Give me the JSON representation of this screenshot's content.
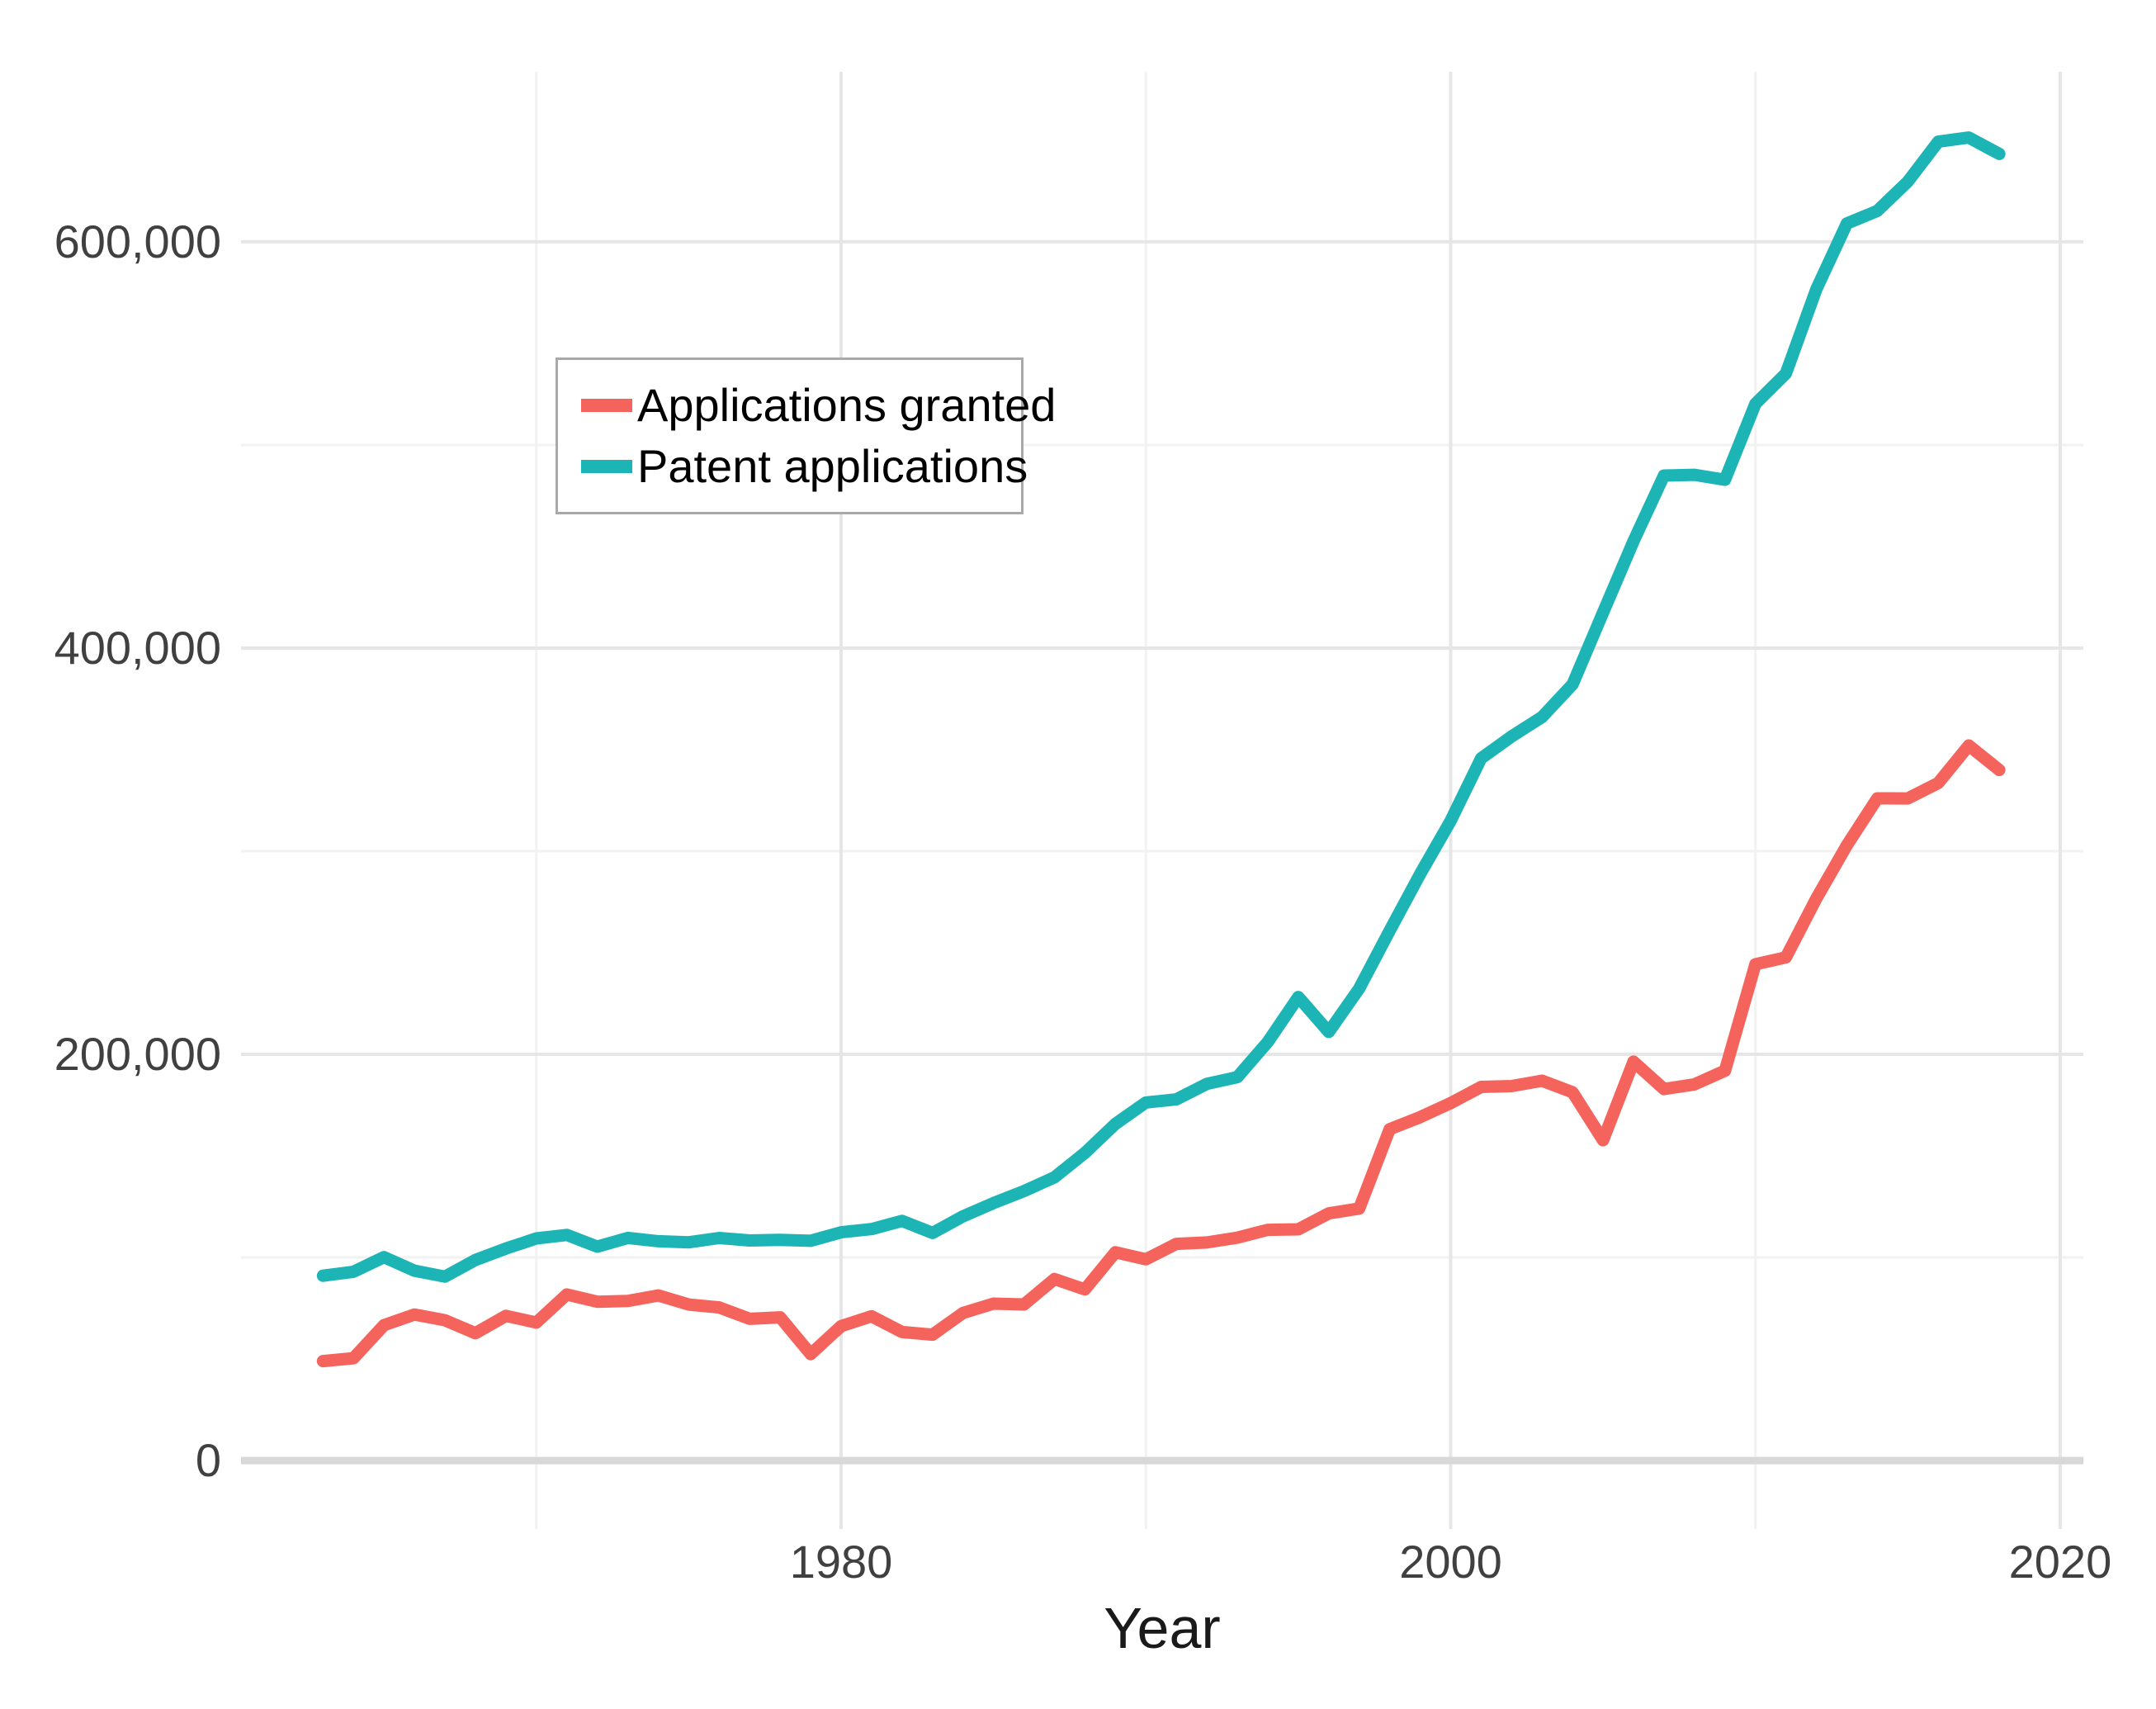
{
  "chart_data": {
    "type": "line",
    "xlabel": "Year",
    "x": [
      1963,
      1964,
      1965,
      1966,
      1967,
      1968,
      1969,
      1970,
      1971,
      1972,
      1973,
      1974,
      1975,
      1976,
      1977,
      1978,
      1979,
      1980,
      1981,
      1982,
      1983,
      1984,
      1985,
      1986,
      1987,
      1988,
      1989,
      1990,
      1991,
      1992,
      1993,
      1994,
      1995,
      1996,
      1997,
      1998,
      1999,
      2000,
      2001,
      2002,
      2003,
      2004,
      2005,
      2006,
      2007,
      2008,
      2009,
      2010,
      2011,
      2012,
      2013,
      2014,
      2015,
      2016,
      2017,
      2018
    ],
    "series": [
      {
        "name": "Applications granted",
        "color": "#F4645D",
        "values": [
          48971,
          50389,
          66647,
          71886,
          69098,
          62714,
          71230,
          67964,
          81790,
          78185,
          78622,
          81278,
          76810,
          75388,
          69781,
          70514,
          52413,
          66170,
          71064,
          63276,
          61982,
          72650,
          77245,
          76862,
          89385,
          84272,
          102533,
          99077,
          106696,
          107394,
          109746,
          113587,
          113834,
          121696,
          124069,
          163142,
          169085,
          175979,
          183970,
          184375,
          187012,
          181299,
          157718,
          196405,
          182899,
          185224,
          191927,
          244341,
          247713,
          276788,
          302948,
          326032,
          325979,
          333583,
          352049,
          339992
        ]
      },
      {
        "name": "Patent applications",
        "color": "#1DB4B5",
        "values": [
          90982,
          92971,
          100150,
          93482,
          90544,
          98737,
          104357,
          109359,
          111095,
          105300,
          109622,
          108011,
          107456,
          109580,
          108377,
          108648,
          108209,
          112379,
          113966,
          117987,
          112040,
          120276,
          126788,
          132665,
          139455,
          151491,
          165748,
          176264,
          177830,
          185446,
          188739,
          206090,
          228238,
          211013,
          232424,
          260889,
          288811,
          315015,
          345732,
          356493,
          366043,
          382139,
          417508,
          452633,
          484955,
          485312,
          482871,
          520277,
          535188,
          576763,
          609052,
          615243,
          629647,
          649319,
          651355,
          643303
        ]
      }
    ],
    "x_domain": [
      1960.31,
      2020.76
    ],
    "y_domain": [
      -33700,
      683700
    ],
    "x_ticks": [
      {
        "value": 1980,
        "label": "1980"
      },
      {
        "value": 2000,
        "label": "2000"
      },
      {
        "value": 2020,
        "label": "2020"
      }
    ],
    "x_minor_ticks": [
      1970,
      1990,
      2010
    ],
    "y_ticks": [
      {
        "value": 0,
        "label": "0"
      },
      {
        "value": 200000,
        "label": "200,000"
      },
      {
        "value": 400000,
        "label": "400,000"
      },
      {
        "value": 600000,
        "label": "600,000"
      }
    ],
    "y_minor_ticks": [
      100000,
      300000,
      500000
    ],
    "grid": true,
    "zero_line": true,
    "legend_position": "inside-top-left"
  },
  "colors": {
    "grid_major": "#e6e6e6",
    "grid_minor": "#f2f2f2",
    "zero_line": "#d8d8d8",
    "tick_text": "#404040",
    "axis_title": "#1a1a1a",
    "legend_border": "#a9a9a9"
  }
}
